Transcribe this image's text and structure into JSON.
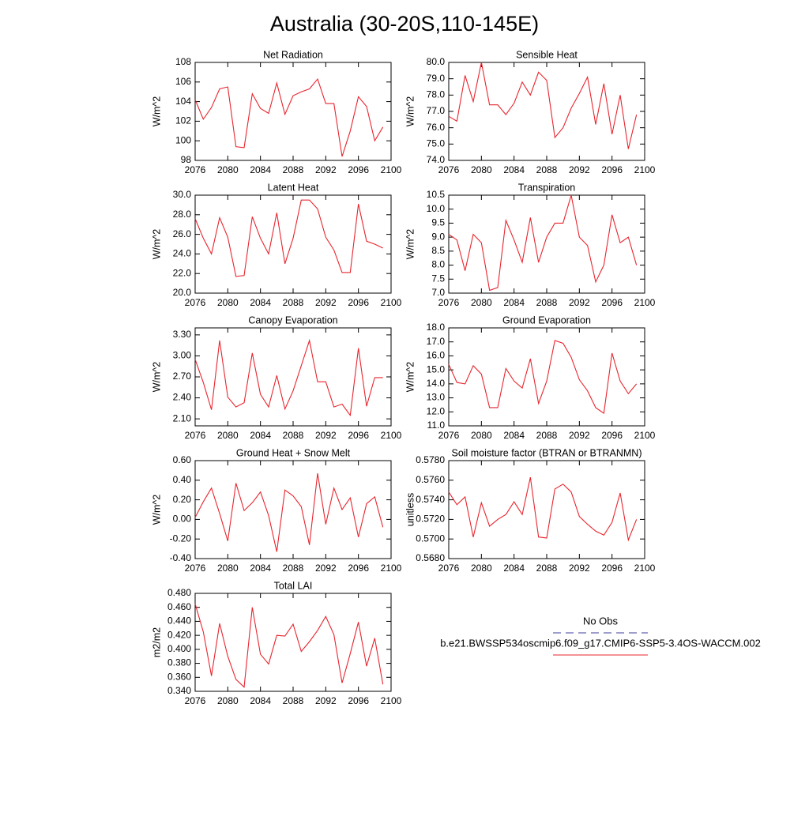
{
  "title": "Australia (30-20S,110-145E)",
  "legend": [
    {
      "name": "No Obs",
      "color": "#3d3d9e",
      "dash": true
    },
    {
      "name": "b.e21.BWSSP534oscmip6.f09_g17.CMIP6-SSP5-3.4OS-WACCM.002",
      "color": "#e8252e",
      "dash": false
    }
  ],
  "chart_data": [
    {
      "type": "line",
      "title": "Net Radiation",
      "ylabel": "W/m^2",
      "x": [
        2076,
        2077,
        2078,
        2079,
        2080,
        2081,
        2082,
        2083,
        2084,
        2085,
        2086,
        2087,
        2088,
        2089,
        2090,
        2091,
        2092,
        2093,
        2094,
        2095,
        2096,
        2097,
        2098,
        2099
      ],
      "xlim": [
        2076,
        2100
      ],
      "xticks": [
        2076,
        2080,
        2084,
        2088,
        2092,
        2096,
        2100
      ],
      "ylim": [
        98,
        108
      ],
      "yticks": [
        98,
        100,
        102,
        104,
        106,
        108
      ],
      "series": [
        {
          "color": "#e8252e",
          "values": [
            104.2,
            102.2,
            103.4,
            105.3,
            105.5,
            99.4,
            99.3,
            104.8,
            103.3,
            102.8,
            105.9,
            102.7,
            104.6,
            105.0,
            105.3,
            106.3,
            103.8,
            103.8,
            98.4,
            101.0,
            104.5,
            103.5,
            100.0,
            101.4
          ]
        }
      ]
    },
    {
      "type": "line",
      "title": "Sensible Heat",
      "ylabel": "W/m^2",
      "x": [
        2076,
        2077,
        2078,
        2079,
        2080,
        2081,
        2082,
        2083,
        2084,
        2085,
        2086,
        2087,
        2088,
        2089,
        2090,
        2091,
        2092,
        2093,
        2094,
        2095,
        2096,
        2097,
        2098,
        2099
      ],
      "xlim": [
        2076,
        2100
      ],
      "xticks": [
        2076,
        2080,
        2084,
        2088,
        2092,
        2096,
        2100
      ],
      "ylim": [
        74,
        80
      ],
      "yticks": [
        {
          "value": 74,
          "label": "74.0"
        },
        {
          "value": 75,
          "label": "75.0"
        },
        {
          "value": 76,
          "label": "76.0"
        },
        {
          "value": 77,
          "label": "77.0"
        },
        {
          "value": 78,
          "label": "78.0"
        },
        {
          "value": 79,
          "label": "79.0"
        },
        {
          "value": 80,
          "label": "80.0"
        }
      ],
      "series": [
        {
          "color": "#e8252e",
          "values": [
            76.7,
            76.4,
            79.2,
            77.6,
            80.0,
            77.4,
            77.4,
            76.8,
            77.5,
            78.8,
            78.0,
            79.4,
            78.9,
            75.4,
            76.0,
            77.2,
            78.1,
            79.1,
            76.2,
            78.7,
            75.6,
            78.0,
            74.7,
            76.8
          ]
        }
      ]
    },
    {
      "type": "line",
      "title": "Latent Heat",
      "ylabel": "W/m^2",
      "x": [
        2076,
        2077,
        2078,
        2079,
        2080,
        2081,
        2082,
        2083,
        2084,
        2085,
        2086,
        2087,
        2088,
        2089,
        2090,
        2091,
        2092,
        2093,
        2094,
        2095,
        2096,
        2097,
        2098,
        2099
      ],
      "xlim": [
        2076,
        2100
      ],
      "xticks": [
        2076,
        2080,
        2084,
        2088,
        2092,
        2096,
        2100
      ],
      "ylim": [
        20,
        30
      ],
      "yticks": [
        {
          "value": 20,
          "label": "20.0"
        },
        {
          "value": 22,
          "label": "22.0"
        },
        {
          "value": 24,
          "label": "24.0"
        },
        {
          "value": 26,
          "label": "26.0"
        },
        {
          "value": 28,
          "label": "28.0"
        },
        {
          "value": 30,
          "label": "30.0"
        }
      ],
      "series": [
        {
          "color": "#e8252e",
          "values": [
            27.6,
            25.6,
            24.0,
            27.7,
            25.7,
            21.7,
            21.8,
            27.8,
            25.6,
            24.0,
            28.2,
            23.0,
            25.6,
            29.5,
            29.5,
            28.6,
            25.7,
            24.4,
            22.1,
            22.1,
            29.1,
            25.3,
            25.0,
            24.6
          ]
        }
      ]
    },
    {
      "type": "line",
      "title": "Transpiration",
      "ylabel": "W/m^2",
      "x": [
        2076,
        2077,
        2078,
        2079,
        2080,
        2081,
        2082,
        2083,
        2084,
        2085,
        2086,
        2087,
        2088,
        2089,
        2090,
        2091,
        2092,
        2093,
        2094,
        2095,
        2096,
        2097,
        2098,
        2099
      ],
      "xlim": [
        2076,
        2100
      ],
      "xticks": [
        2076,
        2080,
        2084,
        2088,
        2092,
        2096,
        2100
      ],
      "ylim": [
        7,
        10.5
      ],
      "yticks": [
        {
          "value": 7,
          "label": "7.0"
        },
        7.5,
        {
          "value": 8,
          "label": "8.0"
        },
        8.5,
        {
          "value": 9,
          "label": "9.0"
        },
        9.5,
        {
          "value": 10,
          "label": "10.0"
        },
        10.5
      ],
      "series": [
        {
          "color": "#e8252e",
          "values": [
            9.1,
            8.9,
            7.8,
            9.1,
            8.8,
            7.1,
            7.2,
            9.6,
            8.9,
            8.1,
            9.7,
            8.1,
            9.0,
            9.5,
            9.5,
            10.5,
            9.0,
            8.7,
            7.4,
            8.0,
            9.8,
            8.8,
            9.0,
            8.0
          ]
        }
      ]
    },
    {
      "type": "line",
      "title": "Canopy Evaporation",
      "ylabel": "W/m^2",
      "x": [
        2076,
        2077,
        2078,
        2079,
        2080,
        2081,
        2082,
        2083,
        2084,
        2085,
        2086,
        2087,
        2088,
        2089,
        2090,
        2091,
        2092,
        2093,
        2094,
        2095,
        2096,
        2097,
        2098,
        2099
      ],
      "xlim": [
        2076,
        2100
      ],
      "xticks": [
        2076,
        2080,
        2084,
        2088,
        2092,
        2096,
        2100
      ],
      "ylim": [
        2.0,
        3.4
      ],
      "yticks": [
        {
          "value": 2.1,
          "label": "2.10"
        },
        {
          "value": 2.4,
          "label": "2.40"
        },
        {
          "value": 2.7,
          "label": "2.70"
        },
        {
          "value": 3.0,
          "label": "3.00"
        },
        {
          "value": 3.3,
          "label": "3.30"
        }
      ],
      "series": [
        {
          "color": "#e8252e",
          "values": [
            2.95,
            2.62,
            2.23,
            3.22,
            2.41,
            2.27,
            2.33,
            3.04,
            2.45,
            2.27,
            2.72,
            2.24,
            2.5,
            2.86,
            3.22,
            2.63,
            2.63,
            2.27,
            2.31,
            2.15,
            3.11,
            2.28,
            2.69,
            2.69
          ]
        }
      ]
    },
    {
      "type": "line",
      "title": "Ground Evaporation",
      "ylabel": "W/m^2",
      "x": [
        2076,
        2077,
        2078,
        2079,
        2080,
        2081,
        2082,
        2083,
        2084,
        2085,
        2086,
        2087,
        2088,
        2089,
        2090,
        2091,
        2092,
        2093,
        2094,
        2095,
        2096,
        2097,
        2098,
        2099
      ],
      "xlim": [
        2076,
        2100
      ],
      "xticks": [
        2076,
        2080,
        2084,
        2088,
        2092,
        2096,
        2100
      ],
      "ylim": [
        11,
        18
      ],
      "yticks": [
        {
          "value": 11,
          "label": "11.0"
        },
        {
          "value": 12,
          "label": "12.0"
        },
        {
          "value": 13,
          "label": "13.0"
        },
        {
          "value": 14,
          "label": "14.0"
        },
        {
          "value": 15,
          "label": "15.0"
        },
        {
          "value": 16,
          "label": "16.0"
        },
        {
          "value": 17,
          "label": "17.0"
        },
        {
          "value": 18,
          "label": "18.0"
        }
      ],
      "series": [
        {
          "color": "#e8252e",
          "values": [
            15.4,
            14.1,
            14.0,
            15.3,
            14.7,
            12.3,
            12.3,
            15.1,
            14.2,
            13.7,
            15.8,
            12.6,
            14.2,
            17.1,
            16.9,
            15.9,
            14.3,
            13.5,
            12.3,
            11.9,
            16.2,
            14.2,
            13.3,
            14.0
          ]
        }
      ]
    },
    {
      "type": "line",
      "title": "Ground Heat + Snow Melt",
      "ylabel": "W/m^2",
      "x": [
        2076,
        2077,
        2078,
        2079,
        2080,
        2081,
        2082,
        2083,
        2084,
        2085,
        2086,
        2087,
        2088,
        2089,
        2090,
        2091,
        2092,
        2093,
        2094,
        2095,
        2096,
        2097,
        2098,
        2099
      ],
      "xlim": [
        2076,
        2100
      ],
      "xticks": [
        2076,
        2080,
        2084,
        2088,
        2092,
        2096,
        2100
      ],
      "ylim": [
        -0.4,
        0.6
      ],
      "yticks": [
        {
          "value": -0.4,
          "label": "-0.40"
        },
        {
          "value": -0.2,
          "label": "-0.20"
        },
        {
          "value": 0,
          "label": "0.00"
        },
        {
          "value": 0.2,
          "label": "0.20"
        },
        {
          "value": 0.4,
          "label": "0.40"
        },
        {
          "value": 0.6,
          "label": "0.60"
        }
      ],
      "series": [
        {
          "color": "#e8252e",
          "values": [
            0.02,
            0.18,
            0.32,
            0.06,
            -0.22,
            0.37,
            0.09,
            0.17,
            0.28,
            0.04,
            -0.33,
            0.3,
            0.24,
            0.13,
            -0.26,
            0.47,
            -0.05,
            0.32,
            0.1,
            0.22,
            -0.18,
            0.16,
            0.23,
            -0.08
          ]
        }
      ]
    },
    {
      "type": "line",
      "title": "Soil moisture factor (BTRAN or BTRANMN)",
      "ylabel": "unitless",
      "x": [
        2076,
        2077,
        2078,
        2079,
        2080,
        2081,
        2082,
        2083,
        2084,
        2085,
        2086,
        2087,
        2088,
        2089,
        2090,
        2091,
        2092,
        2093,
        2094,
        2095,
        2096,
        2097,
        2098,
        2099
      ],
      "xlim": [
        2076,
        2100
      ],
      "xticks": [
        2076,
        2080,
        2084,
        2088,
        2092,
        2096,
        2100
      ],
      "ylim": [
        0.568,
        0.578
      ],
      "yticks": [
        {
          "value": 0.568,
          "label": "0.5680"
        },
        {
          "value": 0.57,
          "label": "0.5700"
        },
        {
          "value": 0.572,
          "label": "0.5720"
        },
        {
          "value": 0.574,
          "label": "0.5740"
        },
        {
          "value": 0.576,
          "label": "0.5760"
        },
        {
          "value": 0.578,
          "label": "0.5780"
        }
      ],
      "series": [
        {
          "color": "#e8252e",
          "values": [
            0.5748,
            0.5735,
            0.5743,
            0.5702,
            0.5737,
            0.5713,
            0.572,
            0.5725,
            0.5738,
            0.5725,
            0.5763,
            0.5702,
            0.5701,
            0.5751,
            0.5756,
            0.5748,
            0.5723,
            0.5715,
            0.5708,
            0.5704,
            0.5717,
            0.5747,
            0.5699,
            0.572
          ]
        }
      ]
    },
    {
      "type": "line",
      "title": "Total LAI",
      "ylabel": "m2/m2",
      "x": [
        2076,
        2077,
        2078,
        2079,
        2080,
        2081,
        2082,
        2083,
        2084,
        2085,
        2086,
        2087,
        2088,
        2089,
        2090,
        2091,
        2092,
        2093,
        2094,
        2095,
        2096,
        2097,
        2098,
        2099
      ],
      "xlim": [
        2076,
        2100
      ],
      "xticks": [
        2076,
        2080,
        2084,
        2088,
        2092,
        2096,
        2100
      ],
      "ylim": [
        0.34,
        0.48
      ],
      "yticks": [
        {
          "value": 0.34,
          "label": "0.340"
        },
        {
          "value": 0.36,
          "label": "0.360"
        },
        {
          "value": 0.38,
          "label": "0.380"
        },
        {
          "value": 0.4,
          "label": "0.400"
        },
        {
          "value": 0.42,
          "label": "0.420"
        },
        {
          "value": 0.44,
          "label": "0.440"
        },
        {
          "value": 0.46,
          "label": "0.460"
        },
        {
          "value": 0.48,
          "label": "0.480"
        }
      ],
      "series": [
        {
          "color": "#e8252e",
          "values": [
            0.465,
            0.425,
            0.362,
            0.437,
            0.39,
            0.357,
            0.346,
            0.46,
            0.393,
            0.379,
            0.42,
            0.419,
            0.436,
            0.397,
            0.411,
            0.427,
            0.447,
            0.421,
            0.352,
            0.394,
            0.439,
            0.376,
            0.416,
            0.35
          ]
        }
      ]
    }
  ]
}
